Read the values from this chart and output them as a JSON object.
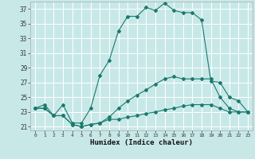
{
  "title": "",
  "xlabel": "Humidex (Indice chaleur)",
  "background_color": "#c8e8e8",
  "grid_color": "#ffffff",
  "line_color": "#1a7a6e",
  "xlim": [
    -0.5,
    23.5
  ],
  "ylim": [
    20.5,
    38.0
  ],
  "yticks": [
    21,
    23,
    25,
    27,
    29,
    31,
    33,
    35,
    37
  ],
  "xticks": [
    0,
    1,
    2,
    3,
    4,
    5,
    6,
    7,
    8,
    9,
    10,
    11,
    12,
    13,
    14,
    15,
    16,
    17,
    18,
    19,
    20,
    21,
    22,
    23
  ],
  "series1_x": [
    0,
    1,
    2,
    3,
    4,
    5,
    6,
    7,
    8,
    9,
    10,
    11,
    12,
    13,
    14,
    15,
    16,
    17,
    18,
    19,
    20,
    21,
    22,
    23
  ],
  "series1_y": [
    23.5,
    23.5,
    22.5,
    22.5,
    21.3,
    21.0,
    21.3,
    21.5,
    22.0,
    22.0,
    22.3,
    22.5,
    22.8,
    23.0,
    23.3,
    23.5,
    23.8,
    24.0,
    24.0,
    24.0,
    23.5,
    23.0,
    23.0,
    23.0
  ],
  "series2_x": [
    0,
    1,
    2,
    3,
    4,
    5,
    6,
    7,
    8,
    9,
    10,
    11,
    12,
    13,
    14,
    15,
    16,
    17,
    18,
    19,
    20,
    21,
    22,
    23
  ],
  "series2_y": [
    23.5,
    23.5,
    22.5,
    22.5,
    21.3,
    21.0,
    21.3,
    21.5,
    22.3,
    23.5,
    24.5,
    25.3,
    26.0,
    26.8,
    27.5,
    27.8,
    27.5,
    27.5,
    27.5,
    27.5,
    25.0,
    23.5,
    23.0,
    23.0
  ],
  "series3_x": [
    0,
    1,
    2,
    3,
    4,
    5,
    6,
    7,
    8,
    9,
    10,
    11,
    12,
    13,
    14,
    15,
    16,
    17,
    18,
    19,
    20,
    21,
    22,
    23
  ],
  "series3_y": [
    23.5,
    24.0,
    22.5,
    24.0,
    21.5,
    21.5,
    23.5,
    28.0,
    30.0,
    34.0,
    36.0,
    36.0,
    37.2,
    36.8,
    37.8,
    36.8,
    36.5,
    36.5,
    35.5,
    27.2,
    27.0,
    25.0,
    24.5,
    23.0
  ]
}
